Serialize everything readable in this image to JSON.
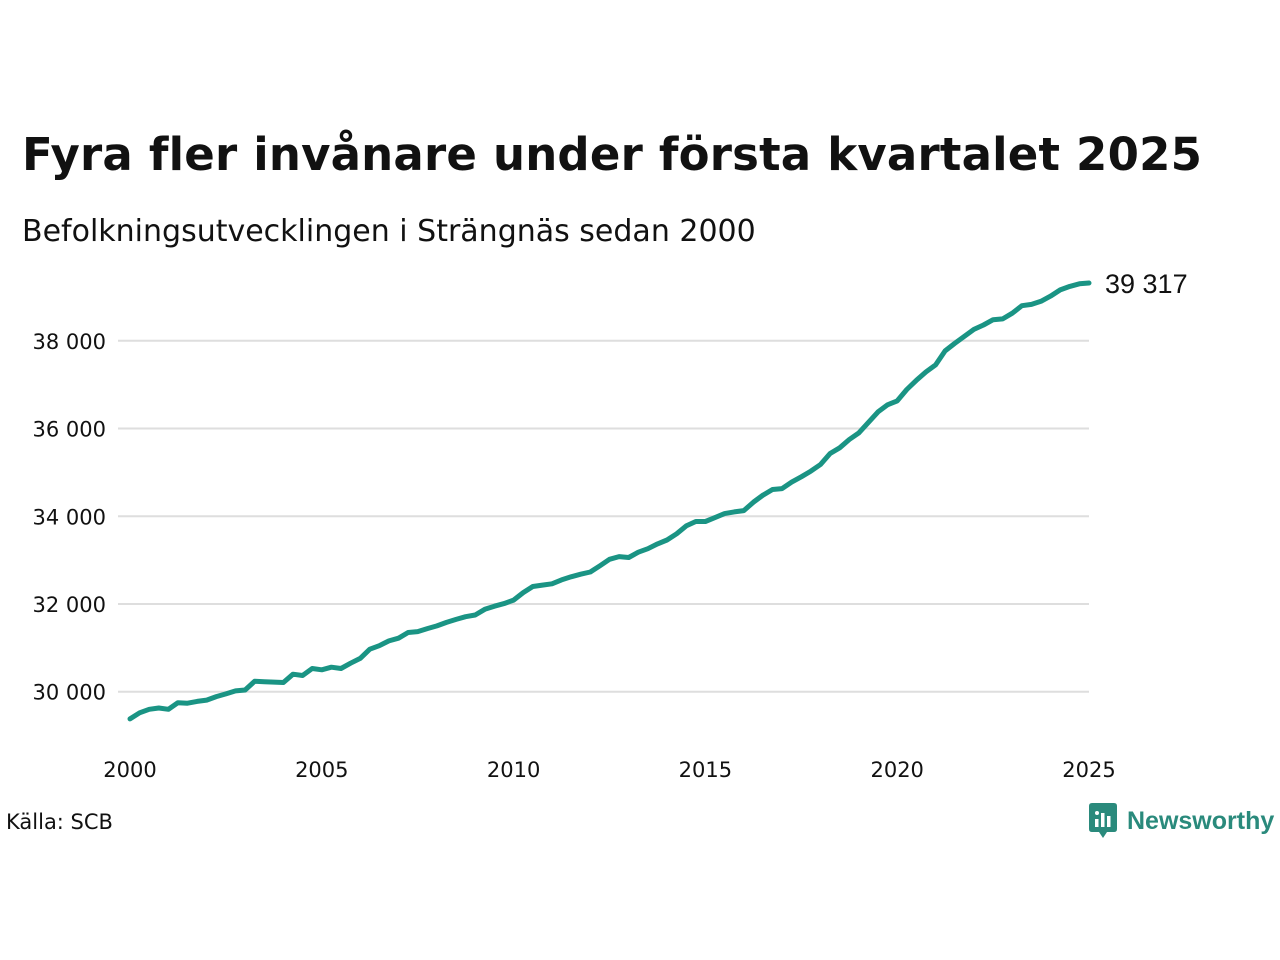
{
  "title": "Fyra fler invånare under första kvartalet 2025",
  "subtitle": "Befolkningsutvecklingen i Strängnäs sedan 2000",
  "source": "Källa: SCB",
  "brand": {
    "name": "Newsworthy",
    "icon": "bar-chart-speech-bubble-icon",
    "color": "#2a8a7c"
  },
  "chart_data": {
    "type": "line",
    "title": "Fyra fler invånare under första kvartalet 2025",
    "subtitle": "Befolkningsutvecklingen i Strängnäs sedan 2000",
    "xlabel": "",
    "ylabel": "",
    "xlim": [
      2000,
      2025
    ],
    "ylim": [
      28900,
      39500
    ],
    "x_ticks": [
      2000,
      2005,
      2010,
      2015,
      2020,
      2025
    ],
    "x_tick_labels": [
      "2000",
      "2005",
      "2010",
      "2015",
      "2020",
      "2025"
    ],
    "y_ticks": [
      30000,
      32000,
      34000,
      36000,
      38000
    ],
    "y_tick_labels": [
      "30 000",
      "32 000",
      "34 000",
      "36 000",
      "38 000"
    ],
    "grid": "horizontal",
    "legend": "none",
    "line_color": "#1a9484",
    "end_label": "39 317",
    "series": [
      {
        "x": [
          2000.0,
          2000.25,
          2000.5,
          2000.75,
          2001.0,
          2001.25,
          2001.5,
          2001.75,
          2002.0,
          2002.25,
          2002.5,
          2002.75,
          2003.0,
          2003.25,
          2003.5,
          2003.75,
          2004.0,
          2004.25,
          2004.5,
          2004.75,
          2005.0,
          2005.25,
          2005.5,
          2005.75,
          2006.0,
          2006.25,
          2006.5,
          2006.75,
          2007.0,
          2007.25,
          2007.5,
          2007.75,
          2008.0,
          2008.25,
          2008.5,
          2008.75,
          2009.0,
          2009.25,
          2009.5,
          2009.75,
          2010.0,
          2010.25,
          2010.5,
          2010.75,
          2011.0,
          2011.25,
          2011.5,
          2011.75,
          2012.0,
          2012.25,
          2012.5,
          2012.75,
          2013.0,
          2013.25,
          2013.5,
          2013.75,
          2014.0,
          2014.25,
          2014.5,
          2014.75,
          2015.0,
          2015.25,
          2015.5,
          2015.75,
          2016.0,
          2016.25,
          2016.5,
          2016.75,
          2017.0,
          2017.25,
          2017.5,
          2017.75,
          2018.0,
          2018.25,
          2018.5,
          2018.75,
          2019.0,
          2019.25,
          2019.5,
          2019.75,
          2020.0,
          2020.25,
          2020.5,
          2020.75,
          2021.0,
          2021.25,
          2021.5,
          2021.75,
          2022.0,
          2022.25,
          2022.5,
          2022.75,
          2023.0,
          2023.25,
          2023.5,
          2023.75,
          2024.0,
          2024.25,
          2024.5,
          2024.75,
          2025.0
        ],
        "values": [
          29380,
          29520,
          29600,
          29630,
          29600,
          29750,
          29740,
          29780,
          29810,
          29890,
          29950,
          30020,
          30040,
          30240,
          30230,
          30220,
          30210,
          30400,
          30370,
          30530,
          30500,
          30560,
          30530,
          30650,
          30760,
          30970,
          31050,
          31160,
          31220,
          31350,
          31370,
          31440,
          31500,
          31580,
          31650,
          31710,
          31750,
          31880,
          31950,
          32010,
          32090,
          32260,
          32400,
          32430,
          32460,
          32550,
          32620,
          32680,
          32730,
          32870,
          33020,
          33080,
          33060,
          33180,
          33260,
          33370,
          33460,
          33600,
          33780,
          33880,
          33880,
          33970,
          34060,
          34100,
          34130,
          34320,
          34480,
          34610,
          34630,
          34780,
          34900,
          35030,
          35180,
          35430,
          35560,
          35750,
          35900,
          36140,
          36380,
          36540,
          36630,
          36890,
          37100,
          37290,
          37450,
          37770,
          37940,
          38100,
          38260,
          38360,
          38480,
          38500,
          38630,
          38800,
          38830,
          38900,
          39020,
          39160,
          39240,
          39300,
          39317
        ]
      }
    ]
  }
}
